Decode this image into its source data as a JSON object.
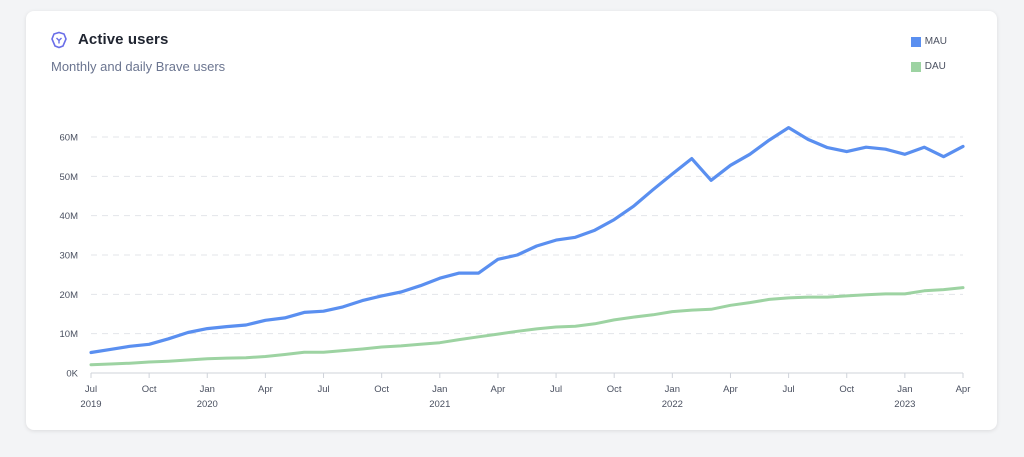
{
  "header": {
    "icon": "brave-lion-icon",
    "title": "Active users",
    "subtitle": "Monthly and daily Brave users"
  },
  "colors": {
    "mau": "#5a8ff0",
    "dau": "#9dd3a2",
    "grid": "#e3e5ea"
  },
  "chart_data": {
    "type": "line",
    "title": "Active users",
    "subtitle": "Monthly and daily Brave users",
    "x": [
      "2019-07",
      "2019-08",
      "2019-09",
      "2019-10",
      "2019-11",
      "2019-12",
      "2020-01",
      "2020-02",
      "2020-03",
      "2020-04",
      "2020-05",
      "2020-06",
      "2020-07",
      "2020-08",
      "2020-09",
      "2020-10",
      "2020-11",
      "2020-12",
      "2021-01",
      "2021-02",
      "2021-03",
      "2021-04",
      "2021-05",
      "2021-06",
      "2021-07",
      "2021-08",
      "2021-09",
      "2021-10",
      "2021-11",
      "2021-12",
      "2022-01",
      "2022-02",
      "2022-03",
      "2022-04",
      "2022-05",
      "2022-06",
      "2022-07",
      "2022-08",
      "2022-09",
      "2022-10",
      "2022-11",
      "2022-12",
      "2023-01",
      "2023-02",
      "2023-03",
      "2023-04"
    ],
    "series": [
      {
        "name": "MAU",
        "values": [
          5.2,
          6.0,
          6.8,
          7.3,
          8.7,
          10.3,
          11.3,
          11.8,
          12.2,
          13.4,
          14.0,
          15.4,
          15.7,
          16.8,
          18.4,
          19.6,
          20.6,
          22.2,
          24.1,
          25.4,
          25.4,
          28.9,
          30.0,
          32.3,
          33.8,
          34.5,
          36.3,
          39.0,
          42.4,
          46.6,
          50.6,
          54.5,
          49.0,
          52.8,
          55.6,
          59.2,
          62.4,
          59.4,
          57.3,
          56.3,
          57.4,
          56.9,
          55.6,
          57.4,
          55.0,
          57.6
        ]
      },
      {
        "name": "DAU",
        "values": [
          2.1,
          2.3,
          2.5,
          2.8,
          3.0,
          3.3,
          3.6,
          3.8,
          3.9,
          4.2,
          4.7,
          5.3,
          5.3,
          5.7,
          6.1,
          6.6,
          6.9,
          7.3,
          7.7,
          8.5,
          9.2,
          9.9,
          10.6,
          11.2,
          11.7,
          11.9,
          12.5,
          13.5,
          14.2,
          14.8,
          15.6,
          16.0,
          16.2,
          17.2,
          17.9,
          18.7,
          19.1,
          19.3,
          19.3,
          19.6,
          19.9,
          20.1,
          20.1,
          20.9,
          21.2,
          21.7
        ]
      }
    ],
    "y_unit": "M",
    "ylim": [
      0,
      60
    ],
    "yticks": [
      "0K",
      "10M",
      "20M",
      "30M",
      "40M",
      "50M",
      "60M"
    ],
    "xticks": [
      {
        "label": "Jul",
        "year": "2019"
      },
      {
        "label": "Oct",
        "year": ""
      },
      {
        "label": "Jan",
        "year": "2020"
      },
      {
        "label": "Apr",
        "year": ""
      },
      {
        "label": "Jul",
        "year": ""
      },
      {
        "label": "Oct",
        "year": ""
      },
      {
        "label": "Jan",
        "year": "2021"
      },
      {
        "label": "Apr",
        "year": ""
      },
      {
        "label": "Jul",
        "year": ""
      },
      {
        "label": "Oct",
        "year": ""
      },
      {
        "label": "Jan",
        "year": "2022"
      },
      {
        "label": "Apr",
        "year": ""
      },
      {
        "label": "Jul",
        "year": ""
      },
      {
        "label": "Oct",
        "year": ""
      },
      {
        "label": "Jan",
        "year": "2023"
      },
      {
        "label": "Apr",
        "year": ""
      }
    ],
    "grid": true,
    "legend": "top-right"
  }
}
